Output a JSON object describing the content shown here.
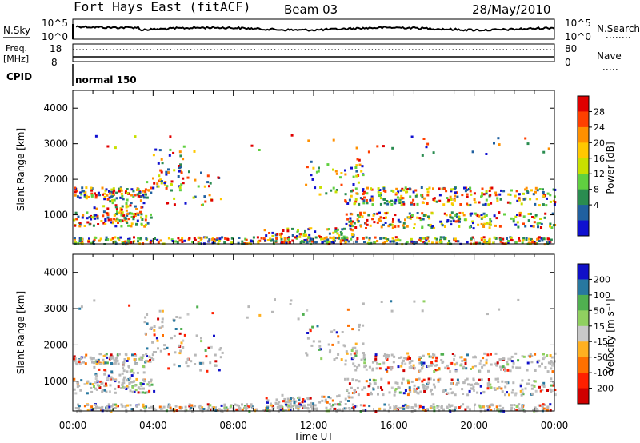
{
  "header": {
    "station": "Fort Hays East (fitACF)",
    "beam": "Beam 03",
    "date": "28/May/2010"
  },
  "status_panels": {
    "nsky_label": "N.Sky",
    "nsky_ticks": [
      "10^5",
      "10^0"
    ],
    "nsearch_label": "N.Search",
    "nsearch_ticks": [
      "10^5",
      "10^0"
    ],
    "freq_label": "Freq.",
    "freq_unit": "[MHz]",
    "freq_ticks": [
      "18",
      "8"
    ],
    "nave_label": "Nave",
    "nave_ticks": [
      "80",
      "0"
    ],
    "cpid_label": "CPID",
    "cpid_value": "normal 150"
  },
  "chart_data": [
    {
      "type": "heatmap",
      "title": "",
      "ylabel": "Slant Range [km]",
      "xlabel": "",
      "x_ticks": [
        "00:00",
        "04:00",
        "08:00",
        "12:00",
        "16:00",
        "20:00",
        "00:00"
      ],
      "x_range_hours": [
        0,
        24
      ],
      "y_ticks": [
        1000,
        2000,
        3000,
        4000
      ],
      "ylim": [
        180,
        4500
      ],
      "colorbar": {
        "label": "Power [dB]",
        "ticks": [
          "28",
          "24",
          "20",
          "16",
          "12",
          "8",
          "4"
        ],
        "colors": [
          "#e00000",
          "#ff4000",
          "#ff9000",
          "#ffc800",
          "#c8e000",
          "#60d040",
          "#2a8c50",
          "#2060a0",
          "#1010d0"
        ]
      }
    },
    {
      "type": "heatmap",
      "title": "",
      "ylabel": "Slant Range [km]",
      "xlabel": "Time UT",
      "x_ticks": [
        "00:00",
        "04:00",
        "08:00",
        "12:00",
        "16:00",
        "20:00",
        "00:00"
      ],
      "x_range_hours": [
        0,
        24
      ],
      "y_ticks": [
        1000,
        2000,
        3000,
        4000
      ],
      "ylim": [
        180,
        4500
      ],
      "colorbar": {
        "label": "Velocity [m s⁻¹]",
        "ticks": [
          "200",
          "100",
          "50",
          "15",
          "-15",
          "-50",
          "-100",
          "-200"
        ],
        "colors": [
          "#1010c8",
          "#2878a0",
          "#50b050",
          "#90d060",
          "#c8c8c8",
          "#ffb020",
          "#ff7000",
          "#ff2000",
          "#d00000"
        ]
      }
    }
  ],
  "colors": {
    "ground_scatter": "#b8b8b8",
    "axis": "#000000"
  }
}
